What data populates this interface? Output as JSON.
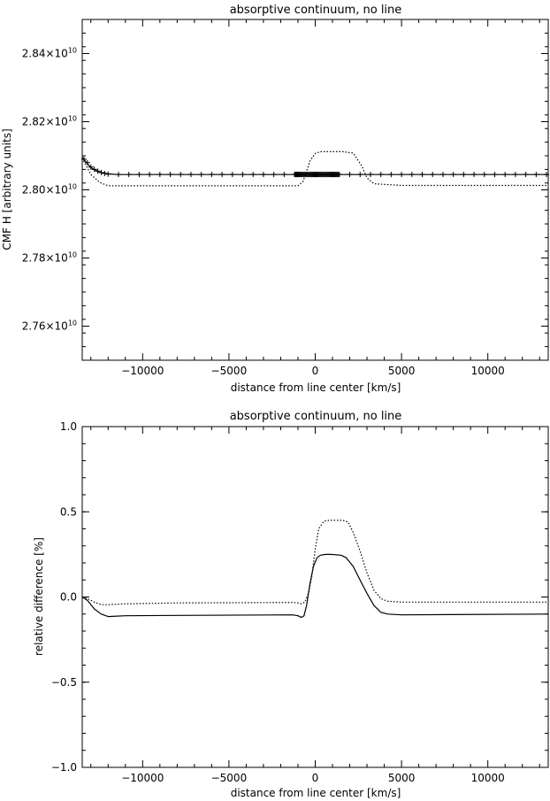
{
  "chart_data": [
    {
      "type": "line",
      "title": "absorptive continuum, no line",
      "xlabel": "distance from line center [km/s]",
      "ylabel": "CMF H [arbitrary units]",
      "xlim": [
        -13500,
        13500
      ],
      "ylim": [
        27500000000.0,
        28500000000.0
      ],
      "xticks": [
        -10000,
        -5000,
        0,
        5000,
        10000
      ],
      "xtick_labels": [
        "−10000",
        "−5000",
        "0",
        "5000",
        "10000"
      ],
      "yticks": [
        27600000000.0,
        27800000000.0,
        28000000000.0,
        28200000000.0,
        28400000000.0
      ],
      "ytick_labels": [
        {
          "m": "2.76×10",
          "e": "10"
        },
        {
          "m": "2.78×10",
          "e": "10"
        },
        {
          "m": "2.80×10",
          "e": "10"
        },
        {
          "m": "2.82×10",
          "e": "10"
        },
        {
          "m": "2.84×10",
          "e": "10"
        }
      ],
      "grid": false,
      "series": [
        {
          "style": "solid",
          "x": [
            -13500,
            -13000,
            -12500,
            -12000,
            -11500,
            0,
            13500
          ],
          "y": [
            28095000000.0,
            28065000000.0,
            28052000000.0,
            28047000000.0,
            28045000000.0,
            28045000000.0,
            28045000000.0
          ]
        },
        {
          "style": "dotted",
          "x": [
            -13500,
            -13000,
            -12500,
            -12000,
            -11000,
            -1000,
            -700,
            -300,
            0,
            300,
            1600,
            2200,
            2700,
            3000,
            3400,
            5000,
            13500
          ],
          "y": [
            28093000000.0,
            28045000000.0,
            28022000000.0,
            28012000000.0,
            28012000000.0,
            28012000000.0,
            28025000000.0,
            28085000000.0,
            28107000000.0,
            28112000000.0,
            28112000000.0,
            28108000000.0,
            28070000000.0,
            28035000000.0,
            28018000000.0,
            28013000000.0,
            28013000000.0
          ]
        },
        {
          "style": "markers",
          "marker": "+",
          "x": [
            -13400,
            -13200,
            -13000,
            -12800,
            -12600,
            -12400,
            -12200,
            -12000,
            -11400,
            -10800,
            -10200,
            -9600,
            -9000,
            -8400,
            -7800,
            -7200,
            -6600,
            -6000,
            -5400,
            -4800,
            -4200,
            -3600,
            -3000,
            -2400,
            -1800,
            -1200,
            -1150,
            -1100,
            -1050,
            -1000,
            -950,
            -900,
            -850,
            -800,
            -750,
            -700,
            -650,
            -600,
            -550,
            -500,
            -450,
            -400,
            -350,
            -300,
            -250,
            -200,
            -150,
            -100,
            -50,
            0,
            50,
            100,
            150,
            200,
            250,
            300,
            350,
            400,
            450,
            500,
            550,
            600,
            650,
            700,
            750,
            800,
            850,
            900,
            950,
            1000,
            1050,
            1100,
            1150,
            1200,
            1250,
            1300,
            1350,
            1400,
            2000,
            2600,
            3200,
            3800,
            4400,
            5000,
            5600,
            6200,
            6800,
            7400,
            8000,
            8600,
            9200,
            9800,
            10400,
            11000,
            11600,
            12200,
            12800,
            13400
          ],
          "y": [
            28090000000.0,
            28080000000.0,
            28067000000.0,
            28060000000.0,
            28055000000.0,
            28051000000.0,
            28048000000.0,
            28046000000.0,
            28045000000.0,
            28045000000.0,
            28045000000.0,
            28045000000.0,
            28045000000.0,
            28045000000.0,
            28045000000.0,
            28045000000.0,
            28045000000.0,
            28045000000.0,
            28045000000.0,
            28045000000.0,
            28045000000.0,
            28045000000.0,
            28045000000.0,
            28045000000.0,
            28045000000.0,
            28045000000.0,
            28045000000.0,
            28045000000.0,
            28045000000.0,
            28045000000.0,
            28045000000.0,
            28045000000.0,
            28045000000.0,
            28045000000.0,
            28045000000.0,
            28045000000.0,
            28045000000.0,
            28045000000.0,
            28045000000.0,
            28045000000.0,
            28045000000.0,
            28045000000.0,
            28045000000.0,
            28045000000.0,
            28045000000.0,
            28045000000.0,
            28045000000.0,
            28045000000.0,
            28045000000.0,
            28045000000.0,
            28045000000.0,
            28045000000.0,
            28045000000.0,
            28045000000.0,
            28045000000.0,
            28045000000.0,
            28045000000.0,
            28045000000.0,
            28045000000.0,
            28045000000.0,
            28045000000.0,
            28045000000.0,
            28045000000.0,
            28045000000.0,
            28045000000.0,
            28045000000.0,
            28045000000.0,
            28045000000.0,
            28045000000.0,
            28045000000.0,
            28045000000.0,
            28045000000.0,
            28045000000.0,
            28045000000.0,
            28045000000.0,
            28045000000.0,
            28045000000.0,
            28045000000.0,
            28045000000.0,
            28045000000.0,
            28045000000.0,
            28045000000.0,
            28045000000.0,
            28045000000.0,
            28045000000.0,
            28045000000.0,
            28045000000.0,
            28045000000.0,
            28045000000.0,
            28045000000.0,
            28045000000.0,
            28045000000.0,
            28045000000.0,
            28045000000.0,
            28045000000.0,
            28045000000.0,
            28045000000.0,
            28045000000.0
          ]
        }
      ]
    },
    {
      "type": "line",
      "title": "absorptive continuum, no line",
      "xlabel": "distance from line center [km/s]",
      "ylabel": "relative difference [%]",
      "xlim": [
        -13500,
        13500
      ],
      "ylim": [
        -1.0,
        1.0
      ],
      "xticks": [
        -10000,
        -5000,
        0,
        5000,
        10000
      ],
      "xtick_labels": [
        "−10000",
        "−5000",
        "0",
        "5000",
        "10000"
      ],
      "yticks": [
        -1.0,
        -0.5,
        0.0,
        0.5,
        1.0
      ],
      "ytick_labels": [
        "−1.0",
        "−0.5",
        "0.0",
        "0.5",
        "1.0"
      ],
      "grid": false,
      "series": [
        {
          "style": "solid",
          "x": [
            -13500,
            -13200,
            -12800,
            -12400,
            -12000,
            -11000,
            -8000,
            -1300,
            -1000,
            -800,
            -650,
            -500,
            -300,
            -100,
            100,
            300,
            600,
            900,
            1200,
            1500,
            1800,
            2200,
            2600,
            3000,
            3400,
            3800,
            4200,
            5000,
            13500
          ],
          "y": [
            0.0,
            -0.02,
            -0.07,
            -0.1,
            -0.115,
            -0.11,
            -0.108,
            -0.105,
            -0.11,
            -0.12,
            -0.11,
            -0.05,
            0.08,
            0.18,
            0.23,
            0.245,
            0.25,
            0.25,
            0.248,
            0.245,
            0.23,
            0.18,
            0.1,
            0.02,
            -0.05,
            -0.09,
            -0.1,
            -0.105,
            -0.1
          ]
        },
        {
          "style": "dotted",
          "x": [
            -13500,
            -13200,
            -12800,
            -12400,
            -12000,
            -11000,
            -8000,
            -1300,
            -1000,
            -800,
            -600,
            -400,
            -200,
            0,
            200,
            500,
            800,
            1200,
            1600,
            1900,
            2200,
            2600,
            3000,
            3400,
            3800,
            4200,
            5000,
            13500
          ],
          "y": [
            0.0,
            -0.01,
            -0.03,
            -0.045,
            -0.045,
            -0.04,
            -0.035,
            -0.032,
            -0.035,
            -0.04,
            -0.03,
            0.02,
            0.12,
            0.28,
            0.4,
            0.445,
            0.45,
            0.45,
            0.45,
            0.44,
            0.38,
            0.27,
            0.14,
            0.04,
            -0.01,
            -0.025,
            -0.03,
            -0.03
          ]
        }
      ]
    }
  ]
}
